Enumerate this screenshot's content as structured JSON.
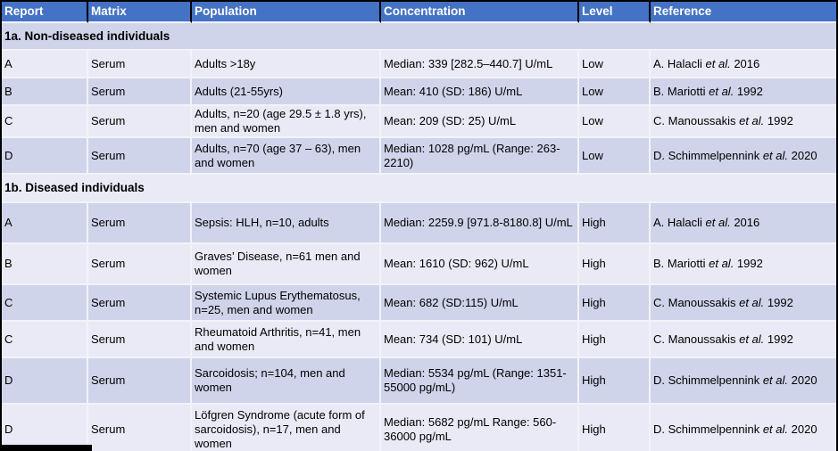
{
  "colors": {
    "header_bg": "#4472C4",
    "band_dark": "#CFD4EA",
    "band_light": "#E9EAF5",
    "grid": "#F2F3F9",
    "frame": "#000000",
    "header_text": "#FFFFFF",
    "text": "#000000"
  },
  "table": {
    "columns": [
      "Report",
      "Matrix",
      "Population",
      "Concentration",
      "Level",
      "Reference"
    ],
    "sections": [
      {
        "title": "1a. Non-diseased individuals",
        "rows": [
          {
            "report": "A",
            "matrix": "Serum",
            "population": "Adults >18y",
            "concentration": "Median: 339 [282.5–440.7] U/mL",
            "level": "Low",
            "reference": [
              "A. Halacli ",
              "et al.",
              " 2016"
            ]
          },
          {
            "report": "B",
            "matrix": "Serum",
            "population": "Adults (21-55yrs)",
            "concentration": "Mean: 410 (SD: 186) U/mL",
            "level": "Low",
            "reference": [
              "B. Mariotti ",
              "et al.",
              " 1992"
            ]
          },
          {
            "report": "C",
            "matrix": "Serum",
            "population": "Adults, n=20 (age 29.5 ± 1.8 yrs), men and women",
            "concentration": "Mean: 209 (SD: 25) U/mL",
            "level": "Low",
            "reference": [
              "C. Manoussakis ",
              "et al.",
              " 1992"
            ]
          },
          {
            "report": "D",
            "matrix": "Serum",
            "population": "Adults, n=70 (age 37 – 63), men and women",
            "concentration": "Median: 1028 pg/mL (Range: 263-2210)",
            "level": "Low",
            "reference": [
              "D. Schimmelpennink ",
              "et al.",
              " 2020"
            ]
          }
        ]
      },
      {
        "title": "1b. Diseased individuals",
        "rows": [
          {
            "report": "A",
            "matrix": "Serum",
            "population": "Sepsis: HLH, n=10, adults",
            "concentration": "Median: 2259.9 [971.8-8180.8] U/mL",
            "level": "High",
            "reference": [
              "A. Halacli ",
              "et al.",
              " 2016"
            ]
          },
          {
            "report": "B",
            "matrix": "Serum",
            "population": "Graves’ Disease, n=61 men and women",
            "concentration": "Mean: 1610 (SD: 962) U/mL",
            "level": "High",
            "reference": [
              "B. Mariotti ",
              "et al.",
              " 1992"
            ]
          },
          {
            "report": "C",
            "matrix": "Serum",
            "population": "Systemic Lupus Erythematosus, n=25, men and women",
            "concentration": "Mean: 682 (SD:115) U/mL",
            "level": "High",
            "reference": [
              "C. Manoussakis ",
              "et al.",
              " 1992"
            ]
          },
          {
            "report": "C",
            "matrix": "Serum",
            "population": "Rheumatoid Arthritis, n=41, men and women",
            "concentration": "Mean: 734 (SD: 101) U/mL",
            "level": "High",
            "reference": [
              "C. Manoussakis ",
              "et al.",
              " 1992"
            ]
          },
          {
            "report": "D",
            "matrix": "Serum",
            "population": "Sarcoidosis; n=104, men and women",
            "concentration": "Median: 5534 pg/mL (Range: 1351-55000 pg/mL)",
            "level": "High",
            "reference": [
              "D. Schimmelpennink ",
              "et al.",
              " 2020"
            ]
          },
          {
            "report": "D",
            "matrix": "Serum",
            "population": "Löfgren Syndrome (acute form of sarcoidosis), n=17, men and women",
            "concentration": "Median: 5682 pg/mL Range: 560-36000 pg/mL",
            "level": "High",
            "reference": [
              "D. Schimmelpennink ",
              "et al.",
              " 2020"
            ]
          }
        ]
      }
    ]
  }
}
